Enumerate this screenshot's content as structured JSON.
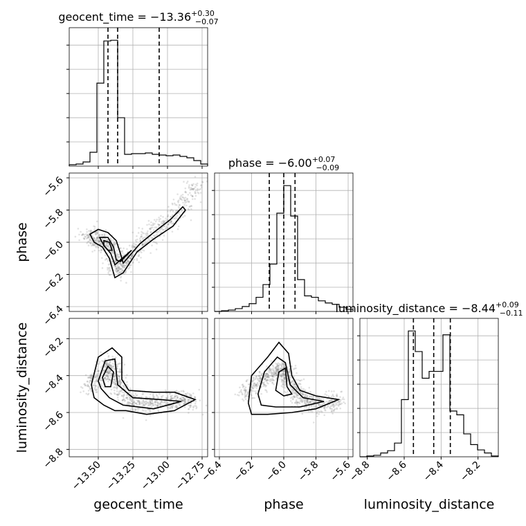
{
  "chart_data": {
    "type": "corner",
    "parameters": [
      {
        "name": "geocent_time",
        "axis_label": "geocent_time",
        "title_prefix": "geocent_time = ",
        "median": "−13.36",
        "err_plus": "+0.30",
        "err_minus": "−0.07",
        "range": [
          -13.71,
          -12.71
        ],
        "ticks": [
          -13.5,
          -13.25,
          -13.0,
          -12.75
        ],
        "tick_labels": [
          "−13.50",
          "−13.25",
          "−13.00",
          "−12.75"
        ],
        "quantiles": [
          -13.43,
          -13.36,
          -13.06
        ],
        "hist_bins": [
          -13.71,
          -13.66,
          -13.61,
          -13.56,
          -13.51,
          -13.46,
          -13.41,
          -13.36,
          -13.31,
          -13.26,
          -13.21,
          -13.16,
          -13.11,
          -13.06,
          -13.01,
          -12.96,
          -12.91,
          -12.86,
          -12.81,
          -12.76,
          -12.71
        ],
        "hist_counts": [
          2,
          3,
          6,
          20,
          120,
          181,
          182,
          70,
          17,
          18,
          18,
          19,
          17,
          16,
          15,
          16,
          14,
          12,
          8,
          3
        ]
      },
      {
        "name": "phase",
        "axis_label": "phase",
        "title_prefix": "phase = ",
        "median": "−6.00",
        "err_plus": "+0.07",
        "err_minus": "−0.09",
        "range": [
          -6.43,
          -5.57
        ],
        "ticks": [
          -6.4,
          -6.2,
          -6.0,
          -5.8,
          -5.6
        ],
        "tick_labels": [
          "−6.4",
          "−6.2",
          "−6.0",
          "−5.8",
          "−5.6"
        ],
        "quantiles": [
          -6.09,
          -6.0,
          -5.93
        ],
        "hist_bins": [
          -6.43,
          -6.387,
          -6.344,
          -6.301,
          -6.258,
          -6.215,
          -6.172,
          -6.129,
          -6.086,
          -6.043,
          -6.0,
          -5.957,
          -5.914,
          -5.871,
          -5.828,
          -5.785,
          -5.742,
          -5.699,
          -5.656,
          -5.613,
          -5.57
        ],
        "hist_counts": [
          0,
          1,
          2,
          4,
          7,
          11,
          20,
          38,
          67,
          139,
          178,
          135,
          45,
          22,
          20,
          15,
          12,
          10,
          6,
          3
        ]
      },
      {
        "name": "luminosity_distance",
        "axis_label": "luminosity_distance",
        "title_prefix": "luminosity_distance = ",
        "median": "−8.44",
        "err_plus": "+0.09",
        "err_minus": "−0.11",
        "range": [
          -8.84,
          -8.09
        ],
        "ticks": [
          -8.8,
          -8.6,
          -8.4,
          -8.2
        ],
        "tick_labels": [
          "−8.8",
          "−8.6",
          "−8.4",
          "−8.2"
        ],
        "quantiles": [
          -8.55,
          -8.44,
          -8.35
        ],
        "hist_bins": [
          -8.84,
          -8.8025,
          -8.765,
          -8.7275,
          -8.69,
          -8.6525,
          -8.615,
          -8.5775,
          -8.54,
          -8.5025,
          -8.465,
          -8.4275,
          -8.39,
          -8.3525,
          -8.315,
          -8.2775,
          -8.24,
          -8.2025,
          -8.165,
          -8.1275,
          -8.09
        ],
        "hist_counts": [
          0,
          1,
          2,
          5,
          8,
          18,
          75,
          165,
          138,
          103,
          112,
          112,
          160,
          60,
          55,
          30,
          16,
          9,
          5,
          1
        ]
      }
    ],
    "pairs": [
      {
        "x": "geocent_time",
        "y": "phase",
        "y_ticks": [
          -6.4,
          -6.2,
          -6.0,
          -5.8,
          -5.6
        ],
        "y_tick_labels": [
          "−6.4",
          "−6.2",
          "−6.0",
          "−5.8",
          "−5.6"
        ],
        "density_ridge": [
          [
            -13.58,
            -5.96
          ],
          [
            -13.47,
            -5.99
          ],
          [
            -13.4,
            -6.04
          ],
          [
            -13.36,
            -6.18
          ],
          [
            -13.3,
            -6.12
          ],
          [
            -13.2,
            -6.01
          ],
          [
            -13.05,
            -5.91
          ],
          [
            -12.9,
            -5.79
          ],
          [
            -12.78,
            -5.63
          ]
        ],
        "contour_levels": [
          [
            [
              -13.56,
              -5.95
            ],
            [
              -13.5,
              -5.92
            ],
            [
              -13.43,
              -5.94
            ],
            [
              -13.37,
              -5.99
            ],
            [
              -13.34,
              -6.07
            ],
            [
              -13.32,
              -6.13
            ],
            [
              -13.28,
              -6.09
            ],
            [
              -13.2,
              -6.01
            ],
            [
              -13.1,
              -5.94
            ],
            [
              -12.98,
              -5.86
            ],
            [
              -12.89,
              -5.78
            ],
            [
              -12.87,
              -5.8
            ],
            [
              -12.96,
              -5.9
            ],
            [
              -13.1,
              -5.98
            ],
            [
              -13.22,
              -6.06
            ],
            [
              -13.32,
              -6.19
            ],
            [
              -13.38,
              -6.22
            ],
            [
              -13.42,
              -6.1
            ],
            [
              -13.47,
              -6.03
            ],
            [
              -13.53,
              -6.0
            ]
          ],
          [
            [
              -13.49,
              -5.97
            ],
            [
              -13.43,
              -5.97
            ],
            [
              -13.39,
              -6.03
            ],
            [
              -13.37,
              -6.11
            ],
            [
              -13.34,
              -6.12
            ],
            [
              -13.26,
              -6.05
            ],
            [
              -13.38,
              -6.14
            ],
            [
              -13.41,
              -6.07
            ],
            [
              -13.46,
              -6.02
            ]
          ],
          [
            [
              -13.46,
              -5.99
            ],
            [
              -13.42,
              -6.0
            ],
            [
              -13.4,
              -6.05
            ],
            [
              -13.43,
              -6.05
            ],
            [
              -13.46,
              -6.02
            ]
          ]
        ]
      },
      {
        "x": "geocent_time",
        "y": "luminosity_distance",
        "y_ticks": [
          -8.8,
          -8.6,
          -8.4,
          -8.2
        ],
        "y_tick_labels": [
          "−8.8",
          "−8.6",
          "−8.4",
          "−8.2"
        ],
        "density_ridge": [
          [
            -13.58,
            -8.48
          ],
          [
            -13.47,
            -8.38
          ],
          [
            -13.4,
            -8.33
          ],
          [
            -13.35,
            -8.46
          ],
          [
            -13.25,
            -8.55
          ],
          [
            -13.1,
            -8.55
          ],
          [
            -12.95,
            -8.53
          ],
          [
            -12.8,
            -8.54
          ]
        ],
        "contour_levels": [
          [
            [
              -13.55,
              -8.45
            ],
            [
              -13.5,
              -8.3
            ],
            [
              -13.4,
              -8.25
            ],
            [
              -13.33,
              -8.3
            ],
            [
              -13.33,
              -8.42
            ],
            [
              -13.28,
              -8.48
            ],
            [
              -13.1,
              -8.49
            ],
            [
              -12.95,
              -8.49
            ],
            [
              -12.8,
              -8.53
            ],
            [
              -12.95,
              -8.59
            ],
            [
              -13.15,
              -8.61
            ],
            [
              -13.3,
              -8.59
            ],
            [
              -13.38,
              -8.59
            ],
            [
              -13.46,
              -8.56
            ],
            [
              -13.53,
              -8.52
            ]
          ],
          [
            [
              -13.5,
              -8.43
            ],
            [
              -13.45,
              -8.32
            ],
            [
              -13.38,
              -8.31
            ],
            [
              -13.36,
              -8.45
            ],
            [
              -13.25,
              -8.52
            ],
            [
              -13.05,
              -8.53
            ],
            [
              -12.9,
              -8.54
            ],
            [
              -13.1,
              -8.58
            ],
            [
              -13.32,
              -8.56
            ],
            [
              -13.42,
              -8.52
            ],
            [
              -13.48,
              -8.47
            ]
          ],
          [
            [
              -13.47,
              -8.41
            ],
            [
              -13.43,
              -8.35
            ],
            [
              -13.39,
              -8.38
            ],
            [
              -13.41,
              -8.46
            ],
            [
              -13.45,
              -8.46
            ]
          ]
        ]
      },
      {
        "x": "phase",
        "y": "luminosity_distance",
        "y_ticks": [
          -8.8,
          -8.6,
          -8.4,
          -8.2
        ],
        "y_tick_labels": [
          "−8.8",
          "−8.6",
          "−8.4",
          "−8.2"
        ],
        "density_ridge": [
          [
            -6.25,
            -8.5
          ],
          [
            -6.12,
            -8.42
          ],
          [
            -6.02,
            -8.36
          ],
          [
            -5.97,
            -8.42
          ],
          [
            -5.9,
            -8.52
          ],
          [
            -5.8,
            -8.56
          ],
          [
            -5.65,
            -8.54
          ]
        ],
        "contour_levels": [
          [
            [
              -6.22,
              -8.55
            ],
            [
              -6.2,
              -8.4
            ],
            [
              -6.1,
              -8.3
            ],
            [
              -6.03,
              -8.22
            ],
            [
              -5.97,
              -8.28
            ],
            [
              -5.95,
              -8.4
            ],
            [
              -5.9,
              -8.48
            ],
            [
              -5.8,
              -8.51
            ],
            [
              -5.66,
              -8.53
            ],
            [
              -5.8,
              -8.58
            ],
            [
              -5.95,
              -8.6
            ],
            [
              -6.1,
              -8.61
            ],
            [
              -6.2,
              -8.61
            ]
          ],
          [
            [
              -6.16,
              -8.5
            ],
            [
              -6.12,
              -8.38
            ],
            [
              -6.04,
              -8.3
            ],
            [
              -5.99,
              -8.33
            ],
            [
              -5.96,
              -8.45
            ],
            [
              -5.88,
              -8.52
            ],
            [
              -5.75,
              -8.54
            ],
            [
              -5.9,
              -8.57
            ],
            [
              -6.05,
              -8.57
            ],
            [
              -6.14,
              -8.56
            ]
          ],
          [
            [
              -6.05,
              -8.48
            ],
            [
              -6.03,
              -8.38
            ],
            [
              -5.99,
              -8.36
            ],
            [
              -5.98,
              -8.46
            ],
            [
              -5.95,
              -8.5
            ],
            [
              -6.0,
              -8.51
            ]
          ]
        ]
      }
    ],
    "grid": true
  }
}
